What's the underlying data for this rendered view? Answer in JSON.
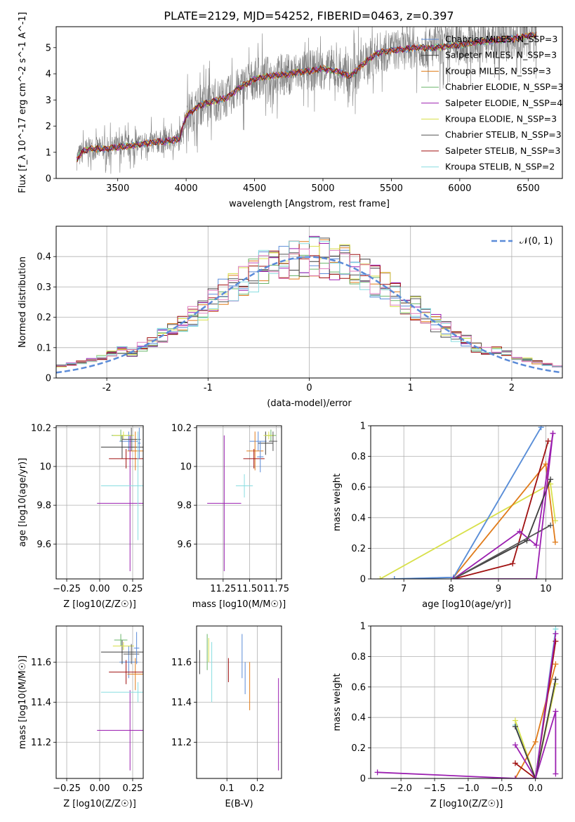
{
  "figure": {
    "title": "PLATE=2129, MJD=54252, FIBERID=0463, z=0.397"
  },
  "colors": {
    "series": [
      "#5b8bd8",
      "#3d3d3d",
      "#e07b1a",
      "#6ab56a",
      "#9b1fb0",
      "#d8e04a",
      "#555555",
      "#a01010",
      "#88dde0"
    ],
    "gaussian": "#5b8bd8",
    "grid": "#b0b0b0"
  },
  "chart_data": [
    {
      "id": "spectrum",
      "type": "line",
      "title": "PLATE=2129, MJD=54252, FIBERID=0463, z=0.397",
      "xlabel": "wavelength [Angstrom, rest frame]",
      "ylabel": "Flux [f_λ 10^-17 erg cm^-2 s^-1 A^-1]",
      "xlim": [
        3050,
        6750
      ],
      "ylim": [
        0,
        5.8
      ],
      "xticks": [
        3500,
        4000,
        4500,
        5000,
        5500,
        6000,
        6500
      ],
      "yticks": [
        0,
        1,
        2,
        3,
        4,
        5
      ],
      "grid": false,
      "legend_position": "top-right",
      "series": [
        {
          "name": "Chabrier MILES, N_SSP=3"
        },
        {
          "name": "Salpeter MILES, N_SSP=3"
        },
        {
          "name": "Kroupa MILES, N_SSP=3"
        },
        {
          "name": "Chabrier ELODIE, N_SSP=3"
        },
        {
          "name": "Salpeter ELODIE, N_SSP=4"
        },
        {
          "name": "Kroupa ELODIE, N_SSP=3"
        },
        {
          "name": "Chabrier STELIB, N_SSP=3"
        },
        {
          "name": "Salpeter STELIB, N_SSP=3"
        },
        {
          "name": "Kroupa STELIB, N_SSP=2"
        }
      ],
      "model_continuum": {
        "x": [
          3200,
          3250,
          3300,
          3400,
          3500,
          3600,
          3700,
          3800,
          3900,
          3950,
          4000,
          4100,
          4200,
          4300,
          4400,
          4500,
          4600,
          4700,
          4800,
          4900,
          5000,
          5100,
          5200,
          5300,
          5400,
          5500,
          5600,
          5700,
          5800,
          5900,
          6000,
          6100,
          6200,
          6300,
          6400,
          6500,
          6560
        ],
        "y": [
          0.75,
          1.05,
          1.15,
          1.12,
          1.2,
          1.25,
          1.35,
          1.4,
          1.45,
          1.5,
          2.4,
          2.8,
          2.95,
          3.1,
          3.5,
          3.8,
          3.9,
          3.95,
          4.05,
          4.1,
          4.2,
          4.1,
          3.9,
          4.4,
          4.8,
          4.9,
          4.95,
          5.0,
          5.0,
          5.05,
          5.1,
          5.2,
          5.25,
          5.3,
          5.35,
          5.45,
          5.5
        ]
      },
      "data_xrange": [
        3200,
        6560
      ]
    },
    {
      "id": "residuals",
      "type": "line",
      "xlabel": "(data-model)/error",
      "ylabel": "Normed distribution",
      "xlim": [
        -2.5,
        2.5
      ],
      "ylim": [
        0,
        0.5
      ],
      "xticks": [
        -2,
        -1,
        0,
        1,
        2
      ],
      "yticks": [
        0.0,
        0.1,
        0.2,
        0.3,
        0.4
      ],
      "grid": true,
      "legend_position": "top-right",
      "legend": "𝒩(0, 1)",
      "gaussian": {
        "mean": 0,
        "sigma": 1
      },
      "histogram_bins": {
        "start": -2.5,
        "width": 0.1,
        "count": 50
      }
    },
    {
      "id": "age_vs_Z",
      "type": "scatter",
      "xlabel": "Z [log10(Z/Z☉)]",
      "ylabel": "age [log10(age/yr)]",
      "xlim": [
        -0.33,
        0.33
      ],
      "ylim": [
        9.42,
        10.21
      ],
      "xticks": [
        -0.25,
        0.0,
        0.25
      ],
      "xtick_labels": [
        "−0.25",
        "0.00",
        "0.25"
      ],
      "yticks": [
        9.6,
        9.8,
        10.0,
        10.2
      ],
      "grid": true,
      "points": [
        {
          "x": 0.22,
          "y": 10.13,
          "xerr": 0.07,
          "yerr": 0.05,
          "c": 0
        },
        {
          "x": 0.17,
          "y": 10.1,
          "xerr": 0.16,
          "yerr": 0.06,
          "c": 1
        },
        {
          "x": 0.27,
          "y": 10.08,
          "xerr": 0.06,
          "yerr": 0.1,
          "c": 2
        },
        {
          "x": 0.16,
          "y": 10.16,
          "xerr": 0.07,
          "yerr": 0.03,
          "c": 3
        },
        {
          "x": 0.23,
          "y": 9.81,
          "xerr": 0.25,
          "yerr": 0.35,
          "c": 4
        },
        {
          "x": 0.18,
          "y": 10.16,
          "xerr": 0.08,
          "yerr": 0.02,
          "c": 5
        },
        {
          "x": 0.2,
          "y": 10.04,
          "xerr": 0.13,
          "yerr": 0.05,
          "c": 7
        },
        {
          "x": 0.24,
          "y": 10.14,
          "xerr": 0.07,
          "yerr": 0.06,
          "c": 6
        },
        {
          "x": 0.29,
          "y": 9.9,
          "xerr": 0.28,
          "yerr": 0.28,
          "c": 8
        },
        {
          "x": 0.3,
          "y": 10.12,
          "xerr": 0.01,
          "yerr": 0.08,
          "c": 0
        }
      ]
    },
    {
      "id": "age_vs_mass",
      "type": "scatter",
      "xlabel": "mass [log10(M/M☉)]",
      "xlim": [
        11.0,
        11.8
      ],
      "ylim": [
        9.42,
        10.21
      ],
      "xticks": [
        11.25,
        11.5,
        11.75
      ],
      "xtick_labels": [
        "11.25",
        "11.50",
        "11.75"
      ],
      "yticks": [
        9.6,
        9.8,
        10.0,
        10.2
      ],
      "grid": true,
      "points": [
        {
          "x": 11.58,
          "y": 10.13,
          "xerr": 0.08,
          "yerr": 0.05,
          "c": 0
        },
        {
          "x": 11.65,
          "y": 10.12,
          "xerr": 0.07,
          "yerr": 0.06,
          "c": 1
        },
        {
          "x": 11.55,
          "y": 10.08,
          "xerr": 0.08,
          "yerr": 0.1,
          "c": 2
        },
        {
          "x": 11.7,
          "y": 10.16,
          "xerr": 0.05,
          "yerr": 0.03,
          "c": 3
        },
        {
          "x": 11.26,
          "y": 9.81,
          "xerr": 0.16,
          "yerr": 0.35,
          "c": 4
        },
        {
          "x": 11.68,
          "y": 10.16,
          "xerr": 0.05,
          "yerr": 0.02,
          "c": 5
        },
        {
          "x": 11.54,
          "y": 10.04,
          "xerr": 0.1,
          "yerr": 0.05,
          "c": 7
        },
        {
          "x": 11.72,
          "y": 10.13,
          "xerr": 0.04,
          "yerr": 0.05,
          "c": 6
        },
        {
          "x": 11.45,
          "y": 9.9,
          "xerr": 0.08,
          "yerr": 0.06,
          "c": 8
        },
        {
          "x": 11.6,
          "y": 10.05,
          "xerr": 0.03,
          "yerr": 0.08,
          "c": 0
        }
      ]
    },
    {
      "id": "mass_weight_vs_age",
      "type": "line",
      "xlabel": "age [log10(age/yr)]",
      "ylabel": "mass weight",
      "xlim": [
        6.3,
        10.35
      ],
      "ylim": [
        0.0,
        1.0
      ],
      "xticks": [
        7,
        8,
        9,
        10
      ],
      "yticks": [
        0.0,
        0.2,
        0.4,
        0.6,
        0.8,
        1.0
      ],
      "grid": true,
      "series": [
        {
          "c": 8,
          "x": [
            6.8,
            8.05,
            9.9
          ],
          "y": [
            0.0,
            0.01,
            0.99
          ]
        },
        {
          "c": 5,
          "x": [
            6.5,
            10.1,
            10.2
          ],
          "y": [
            0.0,
            0.62,
            0.38
          ]
        },
        {
          "c": 2,
          "x": [
            8.05,
            10.0,
            10.2
          ],
          "y": [
            0.01,
            0.75,
            0.24
          ]
        },
        {
          "c": 7,
          "x": [
            8.05,
            9.3,
            10.05
          ],
          "y": [
            0.0,
            0.1,
            0.9
          ]
        },
        {
          "c": 4,
          "x": [
            8.05,
            9.45,
            9.8,
            10.15
          ],
          "y": [
            0.0,
            0.31,
            0.22,
            0.95
          ]
        },
        {
          "c": 1,
          "x": [
            8.05,
            9.6,
            10.1
          ],
          "y": [
            0.0,
            0.25,
            0.65
          ]
        },
        {
          "c": 0,
          "x": [
            6.8,
            8.05,
            9.9
          ],
          "y": [
            0.0,
            0.01,
            0.99
          ]
        },
        {
          "c": 6,
          "x": [
            8.05,
            10.1
          ],
          "y": [
            0.0,
            0.35
          ]
        },
        {
          "c": 4,
          "x": [
            8.05,
            9.8,
            10.15
          ],
          "y": [
            0.0,
            0.0,
            0.95
          ]
        }
      ]
    },
    {
      "id": "mass_vs_Z",
      "type": "scatter",
      "xlabel": "Z [log10(Z/Z☉)]",
      "ylabel": "mass [log10(M/M☉)]",
      "xlim": [
        -0.33,
        0.33
      ],
      "ylim": [
        11.02,
        11.78
      ],
      "xticks": [
        -0.25,
        0.0,
        0.25
      ],
      "xtick_labels": [
        "−0.25",
        "0.00",
        "0.25"
      ],
      "yticks": [
        11.2,
        11.4,
        11.6
      ],
      "grid": true,
      "points": [
        {
          "x": 0.22,
          "y": 11.6,
          "xerr": 0.07,
          "yerr": 0.08,
          "c": 0
        },
        {
          "x": 0.17,
          "y": 11.65,
          "xerr": 0.16,
          "yerr": 0.06,
          "c": 1
        },
        {
          "x": 0.27,
          "y": 11.54,
          "xerr": 0.06,
          "yerr": 0.08,
          "c": 2
        },
        {
          "x": 0.16,
          "y": 11.71,
          "xerr": 0.05,
          "yerr": 0.03,
          "c": 3
        },
        {
          "x": 0.23,
          "y": 11.26,
          "xerr": 0.25,
          "yerr": 0.2,
          "c": 4
        },
        {
          "x": 0.18,
          "y": 11.68,
          "xerr": 0.08,
          "yerr": 0.02,
          "c": 5
        },
        {
          "x": 0.2,
          "y": 11.55,
          "xerr": 0.13,
          "yerr": 0.06,
          "c": 7
        },
        {
          "x": 0.24,
          "y": 11.64,
          "xerr": 0.06,
          "yerr": 0.05,
          "c": 6
        },
        {
          "x": 0.29,
          "y": 11.45,
          "xerr": 0.28,
          "yerr": 0.05,
          "c": 8
        },
        {
          "x": 0.28,
          "y": 11.67,
          "xerr": 0.02,
          "yerr": 0.08,
          "c": 0
        }
      ]
    },
    {
      "id": "mass_vs_EBV",
      "type": "scatter",
      "xlabel": "E(B-V)",
      "xlim": [
        0.0,
        0.28
      ],
      "ylim": [
        11.02,
        11.78
      ],
      "xticks": [
        0.1,
        0.2
      ],
      "yticks": [
        11.2,
        11.4,
        11.6
      ],
      "grid": true,
      "points": [
        {
          "x": 0.01,
          "y": 11.6,
          "yerr": 0.06,
          "c": 1
        },
        {
          "x": 0.035,
          "y": 11.65,
          "yerr": 0.09,
          "c": 3
        },
        {
          "x": 0.04,
          "y": 11.66,
          "yerr": 0.06,
          "c": 5
        },
        {
          "x": 0.05,
          "y": 11.55,
          "yerr": 0.15,
          "c": 8
        },
        {
          "x": 0.105,
          "y": 11.56,
          "yerr": 0.06,
          "c": 7
        },
        {
          "x": 0.15,
          "y": 11.63,
          "yerr": 0.11,
          "c": 0
        },
        {
          "x": 0.16,
          "y": 11.52,
          "yerr": 0.08,
          "c": 0
        },
        {
          "x": 0.175,
          "y": 11.48,
          "yerr": 0.12,
          "c": 2
        },
        {
          "x": 0.27,
          "y": 11.29,
          "yerr": 0.23,
          "c": 4
        }
      ]
    },
    {
      "id": "mass_weight_vs_Z",
      "type": "line",
      "xlabel": "Z [log10(Z/Z☉)]",
      "ylabel": "mass weight",
      "xlim": [
        -2.45,
        0.4
      ],
      "ylim": [
        0.0,
        1.0
      ],
      "xticks": [
        -2.0,
        -1.5,
        -1.0,
        -0.5,
        0.0
      ],
      "xtick_labels": [
        "−2.0",
        "−1.5",
        "−1.0",
        "−0.5",
        "0.0"
      ],
      "yticks": [
        0.0,
        0.2,
        0.4,
        0.6,
        0.8,
        1.0
      ],
      "grid": true,
      "series": [
        {
          "c": 8,
          "x": [
            -0.3,
            0.0,
            0.3
          ],
          "y": [
            0.35,
            0.0,
            0.98
          ]
        },
        {
          "c": 5,
          "x": [
            -0.3,
            0.0,
            0.3
          ],
          "y": [
            0.38,
            0.0,
            0.62
          ]
        },
        {
          "c": 2,
          "x": [
            -0.3,
            0.0,
            0.3
          ],
          "y": [
            0.0,
            0.24,
            0.75
          ]
        },
        {
          "c": 7,
          "x": [
            -0.3,
            0.0,
            0.3
          ],
          "y": [
            0.1,
            0.0,
            0.9
          ]
        },
        {
          "c": 4,
          "x": [
            -0.3,
            0.0,
            0.3,
            0.3
          ],
          "y": [
            0.22,
            0.0,
            0.44,
            0.03
          ]
        },
        {
          "c": 1,
          "x": [
            -0.3,
            0.0,
            0.3
          ],
          "y": [
            0.34,
            0.0,
            0.65
          ]
        },
        {
          "c": 4,
          "x": [
            -2.35,
            -0.3,
            0.0,
            0.3
          ],
          "y": [
            0.04,
            0.0,
            0.0,
            0.95
          ]
        }
      ]
    }
  ]
}
